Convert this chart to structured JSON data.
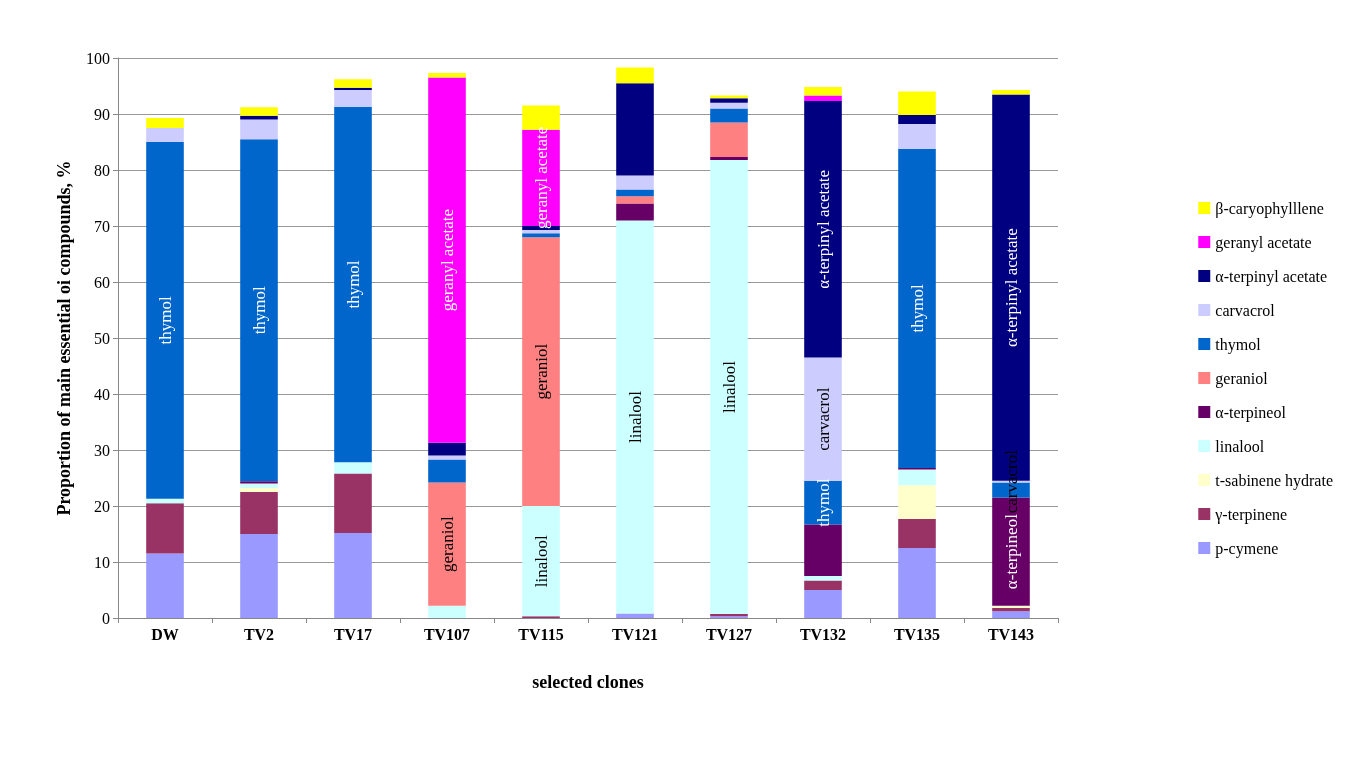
{
  "chart_data": {
    "type": "bar",
    "stacked": true,
    "xlabel": "selected clones",
    "ylabel": "Proportion of main essential oi compounds, %",
    "categories": [
      "DW",
      "TV2",
      "TV17",
      "TV107",
      "TV115",
      "TV121",
      "TV127",
      "TV132",
      "TV135",
      "TV143"
    ],
    "ylim": [
      0,
      100
    ],
    "yticks": [
      0,
      10,
      20,
      30,
      40,
      50,
      60,
      70,
      80,
      90,
      100
    ],
    "grid": "y",
    "legend": "right",
    "series": [
      {
        "name": "p-cymene",
        "color": "#9999ff",
        "values": [
          11.5,
          15,
          15.2,
          0,
          0,
          0.8,
          0.3,
          5,
          12.5,
          1.2
        ]
      },
      {
        "name": "γ-terpinene",
        "color": "#993366",
        "values": [
          9,
          7.5,
          10.6,
          0,
          0.3,
          0,
          0.4,
          1.7,
          5.2,
          0.6
        ]
      },
      {
        "name": "t-sabinene hydrate",
        "color": "#ffffcc",
        "values": [
          0,
          0.7,
          0,
          0,
          0,
          0,
          0,
          0,
          6,
          0.4
        ]
      },
      {
        "name": "linalool",
        "color": "#ccffff",
        "values": [
          0.8,
          0.8,
          2,
          2.2,
          19.7,
          70.2,
          81.1,
          0.8,
          2.8,
          0
        ],
        "value_labels": [
          null,
          null,
          null,
          null,
          "linalool",
          "linalool",
          "linalool",
          null,
          null,
          null
        ]
      },
      {
        "name": "α-terpineol",
        "color": "#660066",
        "values": [
          0,
          0.4,
          0,
          0,
          0,
          3,
          0.5,
          9.2,
          0.3,
          19.3
        ],
        "value_labels": [
          null,
          null,
          null,
          null,
          null,
          null,
          null,
          null,
          null,
          "α-terpineol"
        ]
      },
      {
        "name": "geraniol",
        "color": "#ff8080",
        "values": [
          0,
          0,
          0,
          22,
          48,
          1.3,
          6.2,
          0,
          0,
          0
        ],
        "value_labels": [
          null,
          null,
          null,
          "geraniol",
          "geraniol",
          null,
          null,
          null,
          null,
          null
        ]
      },
      {
        "name": "thymol",
        "color": "#0066cc",
        "values": [
          63.7,
          61.1,
          63.5,
          4.1,
          0.7,
          1.2,
          2.5,
          7.8,
          57,
          2.7
        ],
        "value_labels": [
          "thymol",
          "thymol",
          "thymol",
          null,
          null,
          null,
          null,
          "thymol",
          "thymol",
          null
        ]
      },
      {
        "name": "carvacrol",
        "color": "#ccccff",
        "values": [
          2.5,
          3.5,
          3,
          0.7,
          0.6,
          2.5,
          1,
          22,
          4.4,
          0.3
        ],
        "value_labels": [
          null,
          null,
          null,
          null,
          null,
          null,
          null,
          "carvacrol",
          null,
          "carvacrol"
        ]
      },
      {
        "name": "α-terpinyl acetate",
        "color": "#000080",
        "values": [
          0,
          0.7,
          0.4,
          2.3,
          0.7,
          16.5,
          0.8,
          45.8,
          1.6,
          69
        ],
        "value_labels": [
          null,
          null,
          null,
          null,
          null,
          null,
          null,
          "α-terpinyl acetate",
          null,
          "α-terpinyl acetate"
        ]
      },
      {
        "name": "geranyl acetate",
        "color": "#ff00ff",
        "values": [
          0,
          0,
          0,
          65.2,
          17.2,
          0,
          0,
          1,
          0,
          0
        ],
        "value_labels": [
          null,
          null,
          null,
          "geranyl acetate",
          "geranyl acetate",
          null,
          null,
          null,
          null,
          null
        ]
      },
      {
        "name": "β-caryophylllene",
        "color": "#ffff00",
        "values": [
          1.8,
          1.5,
          1.5,
          0.8,
          4.3,
          2.8,
          0.5,
          1.5,
          4.2,
          0.8
        ]
      }
    ]
  }
}
